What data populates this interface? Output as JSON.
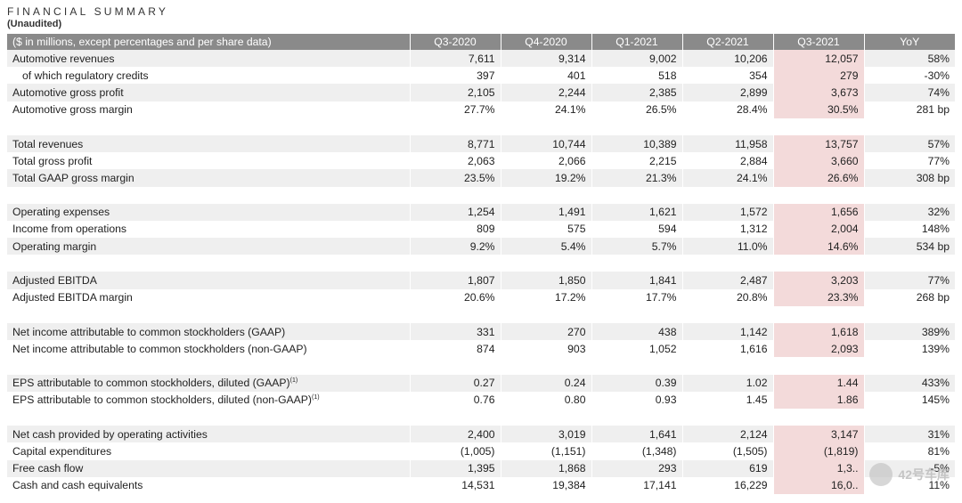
{
  "header": {
    "title": "FINANCIAL SUMMARY",
    "subtitle": "(Unaudited)"
  },
  "table": {
    "columns": [
      "($ in millions, except percentages and per share data)",
      "Q3-2020",
      "Q4-2020",
      "Q1-2021",
      "Q2-2021",
      "Q3-2021",
      "YoY"
    ],
    "groups": [
      [
        {
          "label": "Automotive revenues",
          "values": [
            "7,611",
            "9,314",
            "9,002",
            "10,206",
            "12,057",
            "58%"
          ]
        },
        {
          "label": "of which regulatory credits",
          "values": [
            "397",
            "401",
            "518",
            "354",
            "279",
            "-30%"
          ]
        },
        {
          "label": "Automotive gross profit",
          "values": [
            "2,105",
            "2,244",
            "2,385",
            "2,899",
            "3,673",
            "74%"
          ]
        },
        {
          "label": "Automotive gross margin",
          "values": [
            "27.7%",
            "24.1%",
            "26.5%",
            "28.4%",
            "30.5%",
            "281 bp"
          ]
        }
      ],
      [
        {
          "label": "Total revenues",
          "values": [
            "8,771",
            "10,744",
            "10,389",
            "11,958",
            "13,757",
            "57%"
          ]
        },
        {
          "label": "Total gross profit",
          "values": [
            "2,063",
            "2,066",
            "2,215",
            "2,884",
            "3,660",
            "77%"
          ]
        },
        {
          "label": "Total GAAP gross margin",
          "values": [
            "23.5%",
            "19.2%",
            "21.3%",
            "24.1%",
            "26.6%",
            "308 bp"
          ]
        }
      ],
      [
        {
          "label": "Operating expenses",
          "values": [
            "1,254",
            "1,491",
            "1,621",
            "1,572",
            "1,656",
            "32%"
          ]
        },
        {
          "label": "Income from operations",
          "values": [
            "809",
            "575",
            "594",
            "1,312",
            "2,004",
            "148%"
          ]
        },
        {
          "label": "Operating margin",
          "values": [
            "9.2%",
            "5.4%",
            "5.7%",
            "11.0%",
            "14.6%",
            "534 bp"
          ]
        }
      ],
      [
        {
          "label": "Adjusted EBITDA",
          "values": [
            "1,807",
            "1,850",
            "1,841",
            "2,487",
            "3,203",
            "77%"
          ]
        },
        {
          "label": "Adjusted EBITDA margin",
          "values": [
            "20.6%",
            "17.2%",
            "17.7%",
            "20.8%",
            "23.3%",
            "268 bp"
          ]
        }
      ],
      [
        {
          "label": "Net income attributable to common stockholders (GAAP)",
          "values": [
            "331",
            "270",
            "438",
            "1,142",
            "1,618",
            "389%"
          ]
        },
        {
          "label": "Net income attributable to common stockholders (non-GAAP)",
          "values": [
            "874",
            "903",
            "1,052",
            "1,616",
            "2,093",
            "139%"
          ]
        }
      ],
      [
        {
          "label": "EPS attributable to common stockholders, diluted (GAAP)",
          "sup": "(1)",
          "values": [
            "0.27",
            "0.24",
            "0.39",
            "1.02",
            "1.44",
            "433%"
          ]
        },
        {
          "label": "EPS attributable to common stockholders, diluted (non-GAAP)",
          "sup": "(1)",
          "values": [
            "0.76",
            "0.80",
            "0.93",
            "1.45",
            "1.86",
            "145%"
          ]
        }
      ],
      [
        {
          "label": "Net cash provided by operating activities",
          "values": [
            "2,400",
            "3,019",
            "1,641",
            "2,124",
            "3,147",
            "31%"
          ]
        },
        {
          "label": "Capital expenditures",
          "values": [
            "(1,005)",
            "(1,151)",
            "(1,348)",
            "(1,505)",
            "(1,819)",
            "81%"
          ]
        },
        {
          "label": "Free cash flow",
          "values": [
            "1,395",
            "1,868",
            "293",
            "619",
            "1,3..",
            "-5%"
          ]
        },
        {
          "label": "Cash and cash equivalents",
          "values": [
            "14,531",
            "19,384",
            "17,141",
            "16,229",
            "16,0..",
            "11%"
          ]
        }
      ]
    ]
  },
  "watermark": {
    "text": "42号车库"
  },
  "colors": {
    "header_bg": "#8a8a8a",
    "row_shade": "#efefef",
    "highlight": "#f3dada"
  }
}
